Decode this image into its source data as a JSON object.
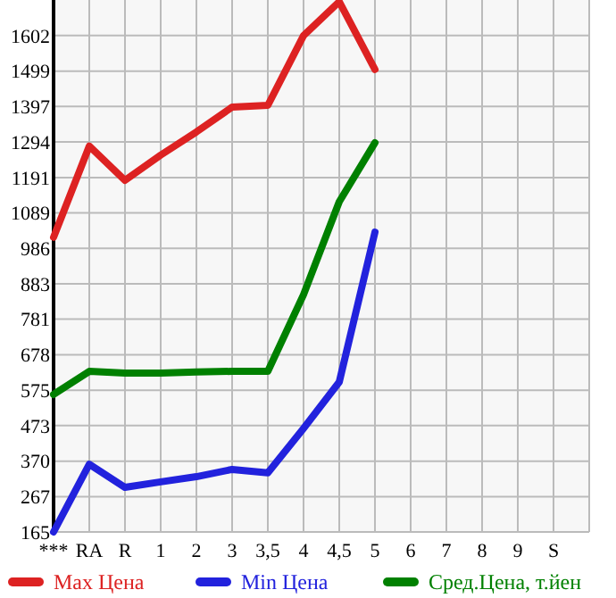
{
  "chart_data": {
    "type": "line",
    "categories": [
      "***",
      "RA",
      "R",
      "1",
      "2",
      "3",
      "3,5",
      "4",
      "4,5",
      "5",
      "6",
      "7",
      "8",
      "9",
      "S"
    ],
    "series": [
      {
        "name": "Max Цена",
        "color": "#dd2222",
        "values": [
          1018,
          1282,
          1183,
          1256,
          1323,
          1395,
          1400,
          1602,
          1700,
          1504,
          null,
          null,
          null,
          null,
          null
        ]
      },
      {
        "name": "Min Цена",
        "color": "#2222dd",
        "values": [
          165,
          361,
          294,
          310,
          325,
          346,
          336,
          465,
          599,
          1033,
          null,
          null,
          null,
          null,
          null
        ]
      },
      {
        "name": "Сред.Цена, т.йен",
        "color": "#008000",
        "values": [
          563,
          630,
          625,
          625,
          628,
          630,
          630,
          852,
          1121,
          1292,
          null,
          null,
          null,
          null,
          null
        ]
      }
    ],
    "ylim": [
      165,
      1705
    ],
    "yticks": [
      165,
      267,
      370,
      473,
      575,
      678,
      781,
      883,
      986,
      1089,
      1191,
      1294,
      1397,
      1499,
      1602
    ],
    "grid": true,
    "legend": "bottom",
    "marker": "none",
    "line_style": "solid"
  }
}
